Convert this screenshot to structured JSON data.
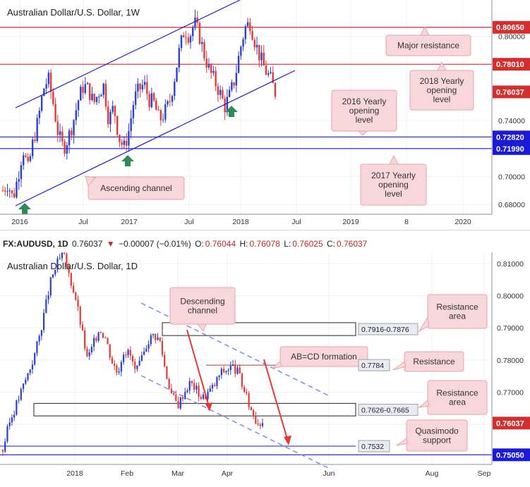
{
  "weekly": {
    "title": "Australian Dollar/U.S. Dollar, 1W",
    "y_ticks": [
      "0.80000",
      "0.78000",
      "0.74000",
      "0.72000",
      "0.70000",
      "0.68000"
    ],
    "x_ticks": [
      "2016",
      "Jul",
      "2017",
      "Jul",
      "2018",
      "Jul",
      "2019",
      "8",
      "2020"
    ],
    "price_labels": [
      {
        "text": "0.80650",
        "value": 0.8065,
        "color": "#d32f2f"
      },
      {
        "text": "0.78010",
        "value": 0.7801,
        "color": "#d32f2f"
      },
      {
        "text": "0.76037",
        "value": 0.76037,
        "color": "#d32f2f"
      },
      {
        "text": "0.72820",
        "value": 0.7282,
        "color": "#1a1ad8"
      },
      {
        "text": "0.71990",
        "value": 0.7199,
        "color": "#1a1ad8"
      }
    ],
    "notes": {
      "major_resistance": "Major resistance",
      "yearly_2018": [
        "2018 Yearly",
        "opening",
        "level"
      ],
      "yearly_2016": [
        "2016 Yearly",
        "opening",
        "level"
      ],
      "yearly_2017": [
        "2017 Yearly",
        "opening",
        "level"
      ],
      "ascending_channel": "Ascending channel"
    }
  },
  "infobar": {
    "symbol": "FX:AUDUSD, 1D",
    "last": "0.76037",
    "change": "−0.00007 (−0.01%)",
    "o_label": "O:",
    "o": "0.76044",
    "h_label": "H:",
    "h": "0.76078",
    "l_label": "L:",
    "l": "0.76025",
    "c_label": "C:",
    "c": "0.76037"
  },
  "daily": {
    "title": "Australian Dollar/U.S. Dollar, 1D",
    "y_ticks": [
      "0.81000",
      "0.80000",
      "0.79000",
      "0.78000",
      "0.77000",
      "0.76000"
    ],
    "x_ticks": [
      "2018",
      "Feb",
      "Mar",
      "Apr",
      "Jun",
      "Aug",
      "Sep"
    ],
    "price_labels": [
      {
        "text": "0.76037",
        "value": 0.76037,
        "color": "#d32f2f"
      },
      {
        "text": "0.75050",
        "value": 0.7505,
        "color": "#1a1ad8"
      }
    ],
    "box_labels": [
      "0.7916-0.7876",
      "0.7784",
      "0.7626-0.7665",
      "0.7532"
    ],
    "notes": {
      "descending_channel": [
        "Descending",
        "channel"
      ],
      "abcd": "AB=CD formation",
      "resistance_area_top": [
        "Resistance",
        "area"
      ],
      "resistance": "Resistance",
      "resistance_area_mid": [
        "Resistance",
        "area"
      ],
      "quasimodo": [
        "Quasimodo",
        "support"
      ]
    }
  },
  "colors": {
    "up": "#2b3fd1",
    "down": "#e53935",
    "channel": "#1a1ad8",
    "level": "#d32f2f",
    "note_bg": "#f8d7da",
    "note_border": "#e8a3aa"
  },
  "chart_data": [
    {
      "type": "candlestick",
      "title": "Australian Dollar/U.S. Dollar, 1W",
      "x_ticks": [
        "2016",
        "Jul",
        "2017",
        "Jul",
        "2018",
        "Jul",
        "2019",
        "8",
        "2020"
      ],
      "ylim": [
        0.673,
        0.826
      ],
      "close_path": [
        0.69,
        0.695,
        0.684,
        0.7,
        0.72,
        0.705,
        0.725,
        0.74,
        0.762,
        0.77,
        0.752,
        0.73,
        0.72,
        0.728,
        0.74,
        0.755,
        0.765,
        0.762,
        0.752,
        0.76,
        0.765,
        0.74,
        0.75,
        0.728,
        0.72,
        0.733,
        0.755,
        0.762,
        0.766,
        0.755,
        0.752,
        0.74,
        0.745,
        0.752,
        0.77,
        0.79,
        0.805,
        0.8,
        0.81,
        0.8,
        0.786,
        0.775,
        0.768,
        0.76,
        0.75,
        0.758,
        0.77,
        0.79,
        0.806,
        0.81,
        0.796,
        0.785,
        0.776,
        0.77,
        0.76
      ],
      "horizontal_levels": [
        0.8065,
        0.7801,
        0.7282,
        0.7199
      ],
      "annotations": [
        "Major resistance",
        "2018 Yearly opening level",
        "2016 Yearly opening level",
        "2017 Yearly opening level",
        "Ascending channel"
      ]
    },
    {
      "type": "candlestick",
      "title": "Australian Dollar/U.S. Dollar, 1D",
      "x_ticks": [
        "2018",
        "Feb",
        "Mar",
        "Apr",
        "Jun",
        "Aug",
        "Sep"
      ],
      "ylim": [
        0.7475,
        0.8135
      ],
      "close_path": [
        0.752,
        0.76,
        0.765,
        0.77,
        0.775,
        0.78,
        0.787,
        0.796,
        0.805,
        0.81,
        0.813,
        0.806,
        0.8,
        0.79,
        0.78,
        0.785,
        0.79,
        0.787,
        0.78,
        0.776,
        0.783,
        0.782,
        0.776,
        0.78,
        0.786,
        0.788,
        0.786,
        0.776,
        0.769,
        0.766,
        0.77,
        0.773,
        0.771,
        0.768,
        0.77,
        0.772,
        0.776,
        0.777,
        0.778,
        0.776,
        0.77,
        0.765,
        0.761,
        0.7604
      ],
      "resistance_areas": [
        [
          0.7876,
          0.7916
        ],
        [
          0.7626,
          0.7665
        ]
      ],
      "horizontal_levels": [
        0.7784,
        0.7532,
        0.7505
      ],
      "annotations": [
        "Descending channel",
        "AB=CD formation",
        "Resistance area",
        "Resistance",
        "Resistance area",
        "Quasimodo support"
      ]
    }
  ]
}
